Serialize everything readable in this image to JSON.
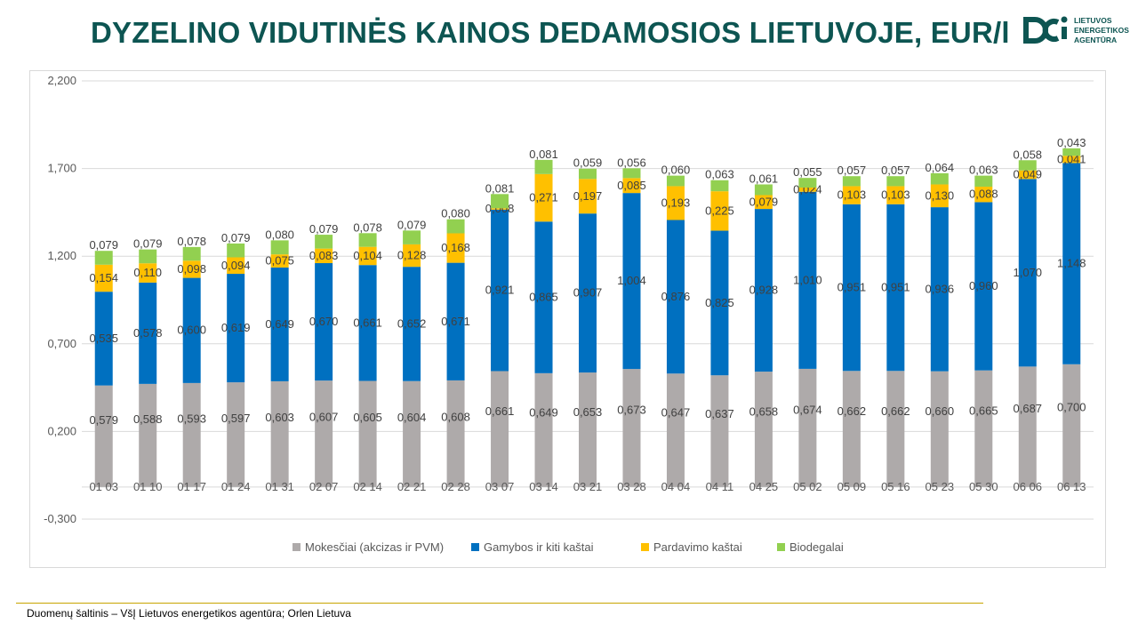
{
  "slide": {
    "title": "DYZELINO VIDUTINĖS KAINOS DEDAMOSIOS LIETUVOJE, EUR/l",
    "source": "Duomenų šaltinis – VšĮ Lietuvos energetikos agentūra; Orlen Lietuva",
    "logo": {
      "text": "LIETUVOS\nENERGETIKOS\nAGENTŪRA",
      "icon": "lea-logo-icon",
      "color": "#0d5552"
    }
  },
  "chart_data": {
    "type": "bar",
    "stacked": true,
    "categories": [
      "01 03",
      "01 10",
      "01 17",
      "01 24",
      "01 31",
      "02 07",
      "02 14",
      "02 21",
      "02 28",
      "03 07",
      "03 14",
      "03 21",
      "03 28",
      "04 04",
      "04 11",
      "04 25",
      "05 02",
      "05 09",
      "05 16",
      "05 23",
      "05 30",
      "06 06",
      "06 13"
    ],
    "series": [
      {
        "name": "Mokesčiai (akcizas ir PVM)",
        "color": "#aeaaaa",
        "values": [
          0.579,
          0.588,
          0.593,
          0.597,
          0.603,
          0.607,
          0.605,
          0.604,
          0.608,
          0.661,
          0.649,
          0.653,
          0.673,
          0.647,
          0.637,
          0.658,
          0.674,
          0.662,
          0.662,
          0.66,
          0.665,
          0.687,
          0.7
        ],
        "labels": [
          "0,579",
          "0,588",
          "0,593",
          "0,597",
          "0,603",
          "0,607",
          "0,605",
          "0,604",
          "0,608",
          "0,661",
          "0,649",
          "0,653",
          "0,673",
          "0,647",
          "0,637",
          "0,658",
          "0,674",
          "0,662",
          "0,662",
          "0,660",
          "0,665",
          "0,687",
          "0,700"
        ]
      },
      {
        "name": "Gamybos ir kiti kaštai",
        "color": "#0070c0",
        "values": [
          0.535,
          0.578,
          0.6,
          0.619,
          0.649,
          0.67,
          0.661,
          0.652,
          0.671,
          0.921,
          0.865,
          0.907,
          1.004,
          0.876,
          0.825,
          0.928,
          1.01,
          0.951,
          0.951,
          0.936,
          0.96,
          1.07,
          1.148
        ],
        "labels": [
          "0,535",
          "0,578",
          "0,600",
          "0,619",
          "0,649",
          "0,670",
          "0,661",
          "0,652",
          "0,671",
          "0,921",
          "0,865",
          "0,907",
          "1,004",
          "0,876",
          "0,825",
          "0,928",
          "1,010",
          "0,951",
          "0,951",
          "0,936",
          "0,960",
          "1,070",
          "1,148"
        ]
      },
      {
        "name": "Pardavimo kaštai",
        "color": "#ffc000",
        "values": [
          0.154,
          0.11,
          0.098,
          0.094,
          0.075,
          0.083,
          0.104,
          0.128,
          0.168,
          0.008,
          0.271,
          0.197,
          0.085,
          0.193,
          0.225,
          0.079,
          0.024,
          0.103,
          0.103,
          0.13,
          0.088,
          0.049,
          0.041
        ],
        "labels": [
          "0,154",
          "0,110",
          "0,098",
          "0,094",
          "0,075",
          "0,083",
          "0,104",
          "0,128",
          "0,168",
          "0,008",
          "0,271",
          "0,197",
          "0,085",
          "0,193",
          "0,225",
          "0,079",
          "0,024",
          "0,103",
          "0,103",
          "0,130",
          "0,088",
          "0,049",
          "0,041"
        ]
      },
      {
        "name": "Biodegalai",
        "color": "#92d050",
        "values": [
          0.079,
          0.079,
          0.078,
          0.079,
          0.08,
          0.079,
          0.078,
          0.079,
          0.08,
          0.081,
          0.081,
          0.059,
          0.056,
          0.06,
          0.063,
          0.061,
          0.055,
          0.057,
          0.057,
          0.064,
          0.063,
          0.058,
          0.043
        ],
        "labels": [
          "0,079",
          "0,079",
          "0,078",
          "0,079",
          "0,080",
          "0,079",
          "0,078",
          "0,079",
          "0,080",
          "0,081",
          "0,081",
          "0,059",
          "0,056",
          "0,060",
          "0,063",
          "0,061",
          "0,055",
          "0,057",
          "0,057",
          "0,064",
          "0,063",
          "0,058",
          "0,043"
        ]
      }
    ],
    "y_axis": {
      "min": -0.3,
      "max": 2.2,
      "ticks": [
        2.2,
        1.7,
        1.2,
        0.7,
        0.2,
        -0.3
      ],
      "tick_labels": [
        "2,200",
        "1,700",
        "1,200",
        "0,700",
        "0,200",
        "-0,300"
      ]
    },
    "title": "",
    "xlabel": "",
    "ylabel": "",
    "gridlines": true,
    "legend_position": "bottom"
  }
}
